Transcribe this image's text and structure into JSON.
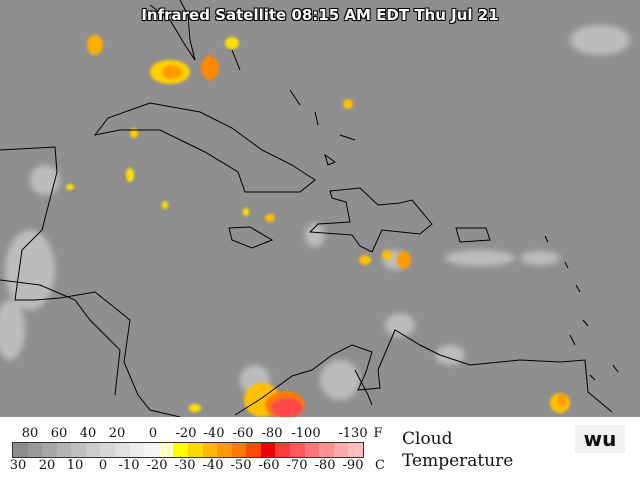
{
  "title": "Infrared Satellite 08:15 AM EDT Thu Jul 21",
  "legend": {
    "fahrenheit_ticks": [
      "80",
      "60",
      "40",
      "20",
      "0",
      "-20",
      "-40",
      "-60",
      "-80",
      "-100",
      "-130"
    ],
    "fahrenheit_unit": "F",
    "celsius_ticks": [
      "30",
      "20",
      "10",
      "0",
      "-10",
      "-20",
      "-30",
      "-40",
      "-50",
      "-60",
      "-70",
      "-80",
      "-90"
    ],
    "celsius_unit": "C",
    "caption_line1": "Cloud",
    "caption_line2": "Temperature",
    "colors": [
      "#8c8c8c",
      "#999999",
      "#a6a6a6",
      "#b3b3b3",
      "#c0c0c0",
      "#cccccc",
      "#d6d6d6",
      "#e0e0e0",
      "#ebebeb",
      "#f5f5f5",
      "#ffffcc",
      "#ffff00",
      "#ffd800",
      "#ffb800",
      "#ff9a00",
      "#ff7a00",
      "#ff4a00",
      "#ee0000",
      "#ff3a3a",
      "#ff5a5a",
      "#ff7878",
      "#ff9090",
      "#ffaaaa",
      "#ffbcbc"
    ]
  },
  "logo": "wu",
  "map_colors": {
    "background": "#8f8f8f",
    "coast": "#000000"
  }
}
